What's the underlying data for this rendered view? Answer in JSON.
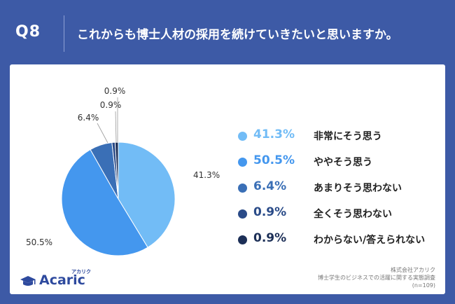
{
  "header": {
    "q_label": "Q8",
    "title": "これからも博士人材の採用を続けていきたいと思いますか。"
  },
  "chart_data": {
    "type": "pie",
    "title": "",
    "labels": [
      "非常にそう思う",
      "ややそう思う",
      "あまりそう思わない",
      "全くそう思わない",
      "わからない/答えられない"
    ],
    "values": [
      41.3,
      50.5,
      6.4,
      0.9,
      0.9
    ],
    "value_labels": [
      "41.3%",
      "50.5%",
      "6.4%",
      "0.9%",
      "0.9%"
    ],
    "colors": [
      "#72bcf6",
      "#4497ee",
      "#3a6fb6",
      "#2a4b88",
      "#1c2f57"
    ],
    "legend_position": "right"
  },
  "legend": [
    {
      "pct": "41.3%",
      "label": "非常にそう思う",
      "color": "#72bcf6"
    },
    {
      "pct": "50.5%",
      "label": "ややそう思う",
      "color": "#4497ee"
    },
    {
      "pct": "6.4%",
      "label": "あまりそう思わない",
      "color": "#3a6fb6"
    },
    {
      "pct": "0.9%",
      "label": "全くそう思わない",
      "color": "#2a4b88"
    },
    {
      "pct": "0.9%",
      "label": "わからない/答えられない",
      "color": "#1c2f57"
    }
  ],
  "logo": {
    "text": "Acaric",
    "kana": "アカリク"
  },
  "source": {
    "company": "株式会社アカリク",
    "survey": "博士学生のビジネスでの活躍に関する実態調査",
    "n": "(n=109)"
  }
}
